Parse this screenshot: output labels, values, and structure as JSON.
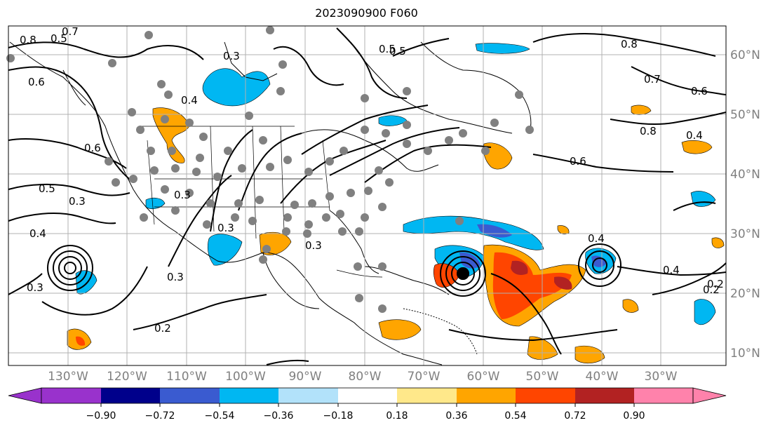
{
  "title": "2023090900 F060",
  "map": {
    "lon_labels": [
      "130°W",
      "120°W",
      "110°W",
      "100°W",
      "90°W",
      "80°W",
      "70°W",
      "60°W",
      "50°W",
      "40°W",
      "30°W"
    ],
    "lat_labels": [
      "60°N",
      "50°N",
      "40°N",
      "30°N",
      "20°N",
      "10°N"
    ],
    "contour_labels": [
      "0.8",
      "0.7",
      "0.6",
      "0.5",
      "0.4",
      "0.3",
      "0.2",
      "0.6",
      "0.5",
      "0.3",
      "0.4",
      "0.3",
      "0.3",
      "0.2",
      "0.5",
      "0.8",
      "0.7",
      "0.6",
      "0.8",
      "0.6",
      "0.4",
      "0.4",
      "0.4",
      "0.2",
      "0.3",
      "0.5",
      "0.3",
      "0.3"
    ],
    "colors": {
      "land_outline": "#000000",
      "grid": "#b0b0b0",
      "station_dots": "#808080"
    }
  },
  "colorbar": {
    "tick_labels": [
      "−0.90",
      "−0.72",
      "−0.54",
      "−0.36",
      "−0.18",
      "0.18",
      "0.36",
      "0.54",
      "0.72",
      "0.90"
    ],
    "colors": [
      "#9932cc",
      "#00008b",
      "#3a5bd0",
      "#00b7f2",
      "#b2e2fa",
      "#ffffff",
      "#ffe88a",
      "#ffa500",
      "#ff4500",
      "#b22222",
      "#ff82ab"
    ]
  }
}
